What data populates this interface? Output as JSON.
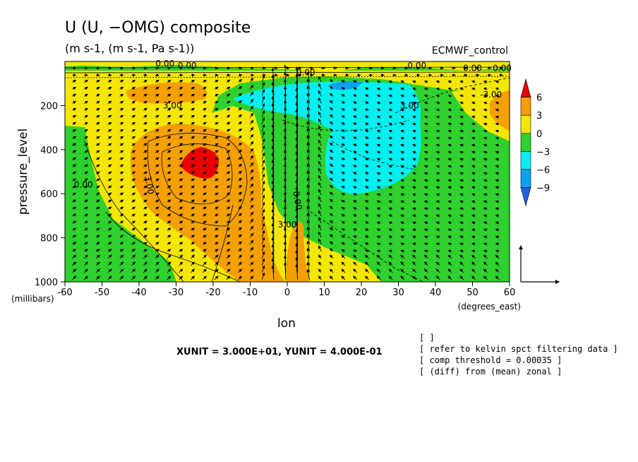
{
  "chart_data": {
    "type": "heatmap",
    "title": "U (U, −OMG) composite",
    "subtitle": "(m s-1, (m s-1, Pa s-1))",
    "source_label": "ECMWF_control",
    "xlabel": "lon",
    "x_units": "(degrees_east)",
    "ylabel": "pressure_level",
    "y_units": "(millibars)",
    "x_ticks": [
      "-60",
      "-50",
      "-40",
      "-30",
      "-20",
      "-10",
      "0",
      "10",
      "20",
      "30",
      "40",
      "50",
      "60"
    ],
    "y_ticks": [
      "200",
      "400",
      "600",
      "800",
      "1000"
    ],
    "xlim": [
      -60,
      60
    ],
    "ylim": [
      1000,
      0
    ],
    "colorbar": {
      "labels": [
        "6",
        "3",
        "0",
        "−3",
        "−6",
        "−9"
      ],
      "colors": [
        "#e80000",
        "#f5a000",
        "#f5e600",
        "#2ed12e",
        "#00f0f0",
        "#0ea0f0",
        "#1e60e0"
      ]
    },
    "contour_labels": [
      "0.00",
      "0.00",
      "0.00",
      "0.00",
      "0.00",
      "0.00",
      "3.00",
      "3.00",
      "0.00",
      "3.00",
      "0.00",
      "3.00",
      "-3.00"
    ],
    "contour_interval": 3,
    "vector_unit": {
      "text": "XUNIT = 3.000E+01, YUNIT = 4.000E-01",
      "xunit": 30.0,
      "yunit": 0.4
    },
    "notes": [
      "[  ]",
      "[ refer to kelvin spct filtering data ]",
      "[ comp threshold = 0.00035 ]",
      "[ (diff) from (mean) zonal ]"
    ],
    "grid": false,
    "legend": "right"
  }
}
